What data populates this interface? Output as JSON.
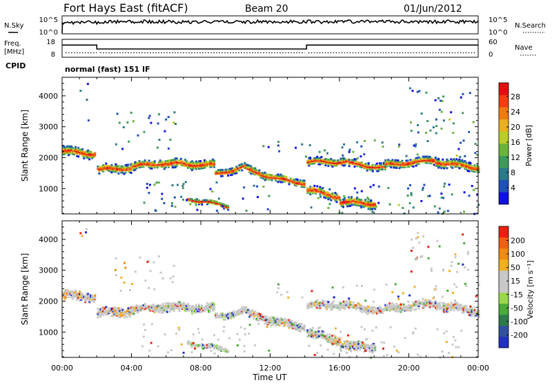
{
  "header": {
    "station": "Fort Hays East (fitACF)",
    "beam": "Beam 20",
    "date": "01/Jun/2012"
  },
  "noise_panel": {
    "left_label": "N.Sky",
    "right_label": "N.Search",
    "left_ticks": [
      "10^5",
      "10^0"
    ],
    "right_ticks": [
      "10^5",
      "10^0"
    ]
  },
  "freq_panel": {
    "left_label_1": "Freq.",
    "left_label_2": "[MHz]",
    "right_label": "Nave",
    "left_ticks": [
      "18",
      "8"
    ],
    "right_ticks": [
      "60",
      "0"
    ],
    "freq_steps": [
      {
        "start_hour": 0,
        "end_hour": 2.0,
        "level": 14.8
      },
      {
        "start_hour": 2.0,
        "end_hour": 14.1,
        "level": 12.6
      },
      {
        "start_hour": 14.1,
        "end_hour": 24,
        "level": 14.8
      }
    ],
    "nave_dotted": [
      {
        "start_hour": 0.2,
        "end_hour": 2.0,
        "level": 10.5
      },
      {
        "start_hour": 2.2,
        "end_hour": 14.0,
        "level": 10.5
      },
      {
        "start_hour": 14.2,
        "end_hour": 23.9,
        "level": 10.5
      }
    ]
  },
  "cpid": {
    "label": "CPID",
    "value": "normal (fast) 151 IF"
  },
  "chart_data": [
    {
      "type": "heatmap",
      "name": "power",
      "ylabel": "Slant Range [km]",
      "xlabel": "Time UT",
      "xlim": [
        0,
        24
      ],
      "ylim": [
        180,
        4600
      ],
      "yticks": [
        1000,
        2000,
        3000,
        4000
      ],
      "xticks": [
        "00:00",
        "04:00",
        "08:00",
        "12:00",
        "16:00",
        "20:00",
        "00:00"
      ],
      "colorbar": {
        "label": "Power [dB]",
        "ticks": [
          "4",
          "8",
          "12",
          "16",
          "20",
          "24",
          "28"
        ],
        "colors": [
          "#1010e0",
          "#1f4fb8",
          "#2a7a8a",
          "#3e9a5a",
          "#6ab43a",
          "#b9cc2a",
          "#e8b020",
          "#f07a10",
          "#f04010",
          "#e01010"
        ]
      },
      "bands": [
        {
          "start_hour": 0.0,
          "end_hour": 1.9,
          "range_start": 2250,
          "range_end": 2150,
          "thickness": 300
        },
        {
          "start_hour": 2.0,
          "end_hour": 4.0,
          "range_start": 1650,
          "range_end": 1700,
          "thickness": 280
        },
        {
          "start_hour": 4.0,
          "end_hour": 5.6,
          "range_start": 1750,
          "range_end": 1850,
          "thickness": 260
        },
        {
          "start_hour": 5.6,
          "end_hour": 8.8,
          "range_start": 1850,
          "range_end": 1800,
          "thickness": 300
        },
        {
          "start_hour": 8.8,
          "end_hour": 10.6,
          "range_start": 1500,
          "range_end": 1750,
          "thickness": 220
        },
        {
          "start_hour": 10.6,
          "end_hour": 12.4,
          "range_start": 1650,
          "range_end": 1350,
          "thickness": 260
        },
        {
          "start_hour": 12.4,
          "end_hour": 14.0,
          "range_start": 1350,
          "range_end": 1200,
          "thickness": 260
        },
        {
          "start_hour": 14.1,
          "end_hour": 16.5,
          "range_start": 1900,
          "range_end": 1900,
          "thickness": 240
        },
        {
          "start_hour": 16.5,
          "end_hour": 18.6,
          "range_start": 1850,
          "range_end": 1700,
          "thickness": 240
        },
        {
          "start_hour": 18.6,
          "end_hour": 21.5,
          "range_start": 1800,
          "range_end": 1950,
          "thickness": 260
        },
        {
          "start_hour": 21.5,
          "end_hour": 24.0,
          "range_start": 1900,
          "range_end": 1700,
          "thickness": 280
        },
        {
          "start_hour": 14.1,
          "end_hour": 16.0,
          "range_start": 1000,
          "range_end": 750,
          "thickness": 280
        },
        {
          "start_hour": 16.0,
          "end_hour": 18.0,
          "range_start": 600,
          "range_end": 550,
          "thickness": 300
        },
        {
          "start_hour": 7.2,
          "end_hour": 9.6,
          "range_start": 700,
          "range_end": 450,
          "thickness": 150
        }
      ],
      "scatter_regions": [
        {
          "start_hour": 1.0,
          "end_hour": 1.5,
          "range_min": 3200,
          "range_max": 4500
        },
        {
          "start_hour": 3.0,
          "end_hour": 6.5,
          "range_min": 2300,
          "range_max": 3500
        },
        {
          "start_hour": 4.5,
          "end_hour": 12.0,
          "range_min": 300,
          "range_max": 1300
        },
        {
          "start_hour": 11.5,
          "end_hour": 13.8,
          "range_min": 2100,
          "range_max": 2600
        },
        {
          "start_hour": 14.0,
          "end_hour": 24.0,
          "range_min": 2000,
          "range_max": 2600
        },
        {
          "start_hour": 20.0,
          "end_hour": 23.8,
          "range_min": 2800,
          "range_max": 4300
        },
        {
          "start_hour": 14.0,
          "end_hour": 24.0,
          "range_min": 200,
          "range_max": 1200
        }
      ]
    },
    {
      "type": "heatmap",
      "name": "velocity",
      "ylabel": "Slant Range [km]",
      "xlabel": "Time UT",
      "xlim": [
        0,
        24
      ],
      "ylim": [
        180,
        4600
      ],
      "yticks": [
        1000,
        2000,
        3000,
        4000
      ],
      "xticks": [
        "00:00",
        "04:00",
        "08:00",
        "12:00",
        "16:00",
        "20:00",
        "00:00"
      ],
      "colorbar": {
        "label": "Velocity [m s⁻¹]",
        "ticks": [
          "200",
          "100",
          "50",
          "15",
          "-15",
          "-50",
          "-100",
          "-200"
        ],
        "colors": [
          "#2030c0",
          "#3050a0",
          "#2e7a4a",
          "#4aaa3a",
          "#9ad84a",
          "#c8c8c8",
          "#c8c8c8",
          "#f0b020",
          "#f08a10",
          "#f06010",
          "#e82010"
        ]
      },
      "bands": [
        {
          "start_hour": 0.0,
          "end_hour": 1.9,
          "range_start": 2250,
          "range_end": 2150,
          "thickness": 300
        },
        {
          "start_hour": 2.0,
          "end_hour": 4.0,
          "range_start": 1650,
          "range_end": 1700,
          "thickness": 280
        },
        {
          "start_hour": 4.0,
          "end_hour": 5.6,
          "range_start": 1750,
          "range_end": 1850,
          "thickness": 260
        },
        {
          "start_hour": 5.6,
          "end_hour": 8.8,
          "range_start": 1850,
          "range_end": 1800,
          "thickness": 300
        },
        {
          "start_hour": 8.8,
          "end_hour": 10.6,
          "range_start": 1500,
          "range_end": 1750,
          "thickness": 220
        },
        {
          "start_hour": 10.6,
          "end_hour": 12.4,
          "range_start": 1650,
          "range_end": 1350,
          "thickness": 260
        },
        {
          "start_hour": 12.4,
          "end_hour": 14.0,
          "range_start": 1350,
          "range_end": 1200,
          "thickness": 260
        },
        {
          "start_hour": 14.1,
          "end_hour": 16.5,
          "range_start": 1900,
          "range_end": 1900,
          "thickness": 240
        },
        {
          "start_hour": 16.5,
          "end_hour": 18.6,
          "range_start": 1850,
          "range_end": 1700,
          "thickness": 240
        },
        {
          "start_hour": 18.6,
          "end_hour": 21.5,
          "range_start": 1800,
          "range_end": 1950,
          "thickness": 260
        },
        {
          "start_hour": 21.5,
          "end_hour": 24.0,
          "range_start": 1900,
          "range_end": 1700,
          "thickness": 280
        },
        {
          "start_hour": 14.1,
          "end_hour": 16.0,
          "range_start": 1000,
          "range_end": 750,
          "thickness": 280
        },
        {
          "start_hour": 16.0,
          "end_hour": 18.0,
          "range_start": 600,
          "range_end": 550,
          "thickness": 300
        },
        {
          "start_hour": 7.2,
          "end_hour": 9.6,
          "range_start": 700,
          "range_end": 450,
          "thickness": 150
        }
      ],
      "scatter_regions": [
        {
          "start_hour": 1.0,
          "end_hour": 1.5,
          "range_min": 3200,
          "range_max": 4500
        },
        {
          "start_hour": 3.0,
          "end_hour": 6.5,
          "range_min": 2300,
          "range_max": 3500
        },
        {
          "start_hour": 4.5,
          "end_hour": 12.0,
          "range_min": 300,
          "range_max": 1300
        },
        {
          "start_hour": 11.5,
          "end_hour": 13.8,
          "range_min": 2100,
          "range_max": 2600
        },
        {
          "start_hour": 14.0,
          "end_hour": 24.0,
          "range_min": 2000,
          "range_max": 2600
        },
        {
          "start_hour": 20.0,
          "end_hour": 23.8,
          "range_min": 2800,
          "range_max": 4300
        },
        {
          "start_hour": 14.0,
          "end_hour": 24.0,
          "range_min": 200,
          "range_max": 1200
        }
      ]
    }
  ]
}
